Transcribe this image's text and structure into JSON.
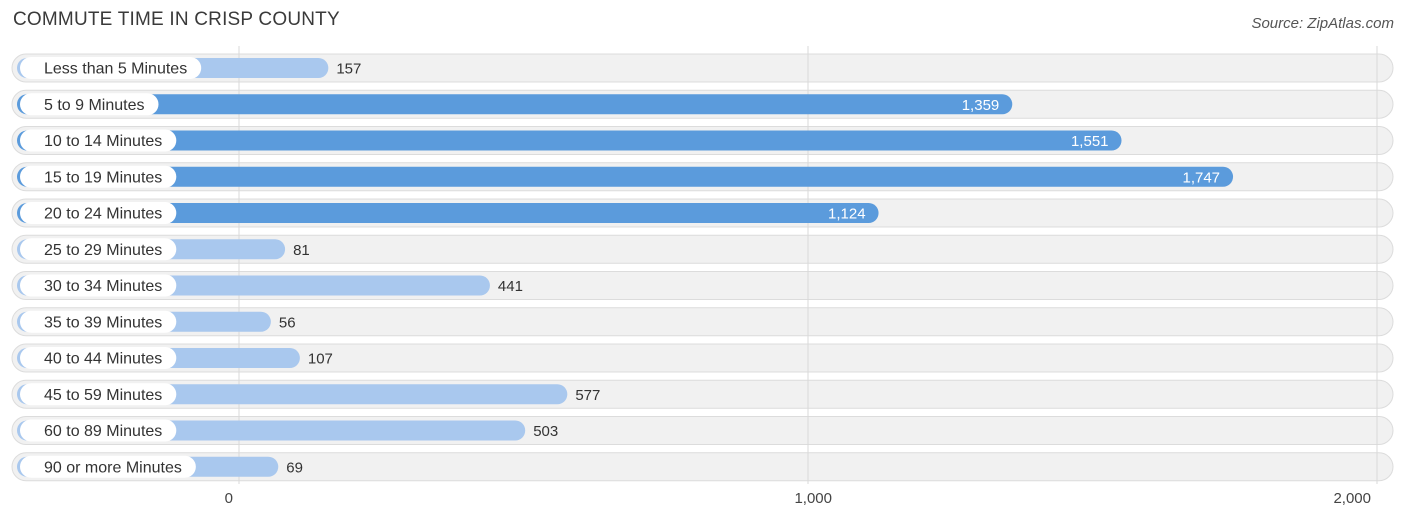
{
  "chart_data": {
    "type": "bar",
    "orientation": "horizontal",
    "title": "COMMUTE TIME IN CRISP COUNTY",
    "source": "Source: ZipAtlas.com",
    "categories": [
      "Less than 5 Minutes",
      "5 to 9 Minutes",
      "10 to 14 Minutes",
      "15 to 19 Minutes",
      "20 to 24 Minutes",
      "25 to 29 Minutes",
      "30 to 34 Minutes",
      "35 to 39 Minutes",
      "40 to 44 Minutes",
      "45 to 59 Minutes",
      "60 to 89 Minutes",
      "90 or more Minutes"
    ],
    "values": [
      157,
      1359,
      1551,
      1747,
      1124,
      81,
      441,
      56,
      107,
      577,
      503,
      69
    ],
    "value_labels": [
      "157",
      "1,359",
      "1,551",
      "1,747",
      "1,124",
      "81",
      "441",
      "56",
      "107",
      "577",
      "503",
      "69"
    ],
    "xlim": [
      0,
      2000
    ],
    "ticks": [
      0,
      1000,
      2000
    ],
    "tick_labels": [
      "0",
      "1,000",
      "2,000"
    ],
    "grid": true,
    "colors": {
      "bar_dark": "#5b9bdc",
      "bar_light": "#a9c8ee",
      "value_inside": "#ffffff",
      "value_outside": "#333333"
    }
  }
}
